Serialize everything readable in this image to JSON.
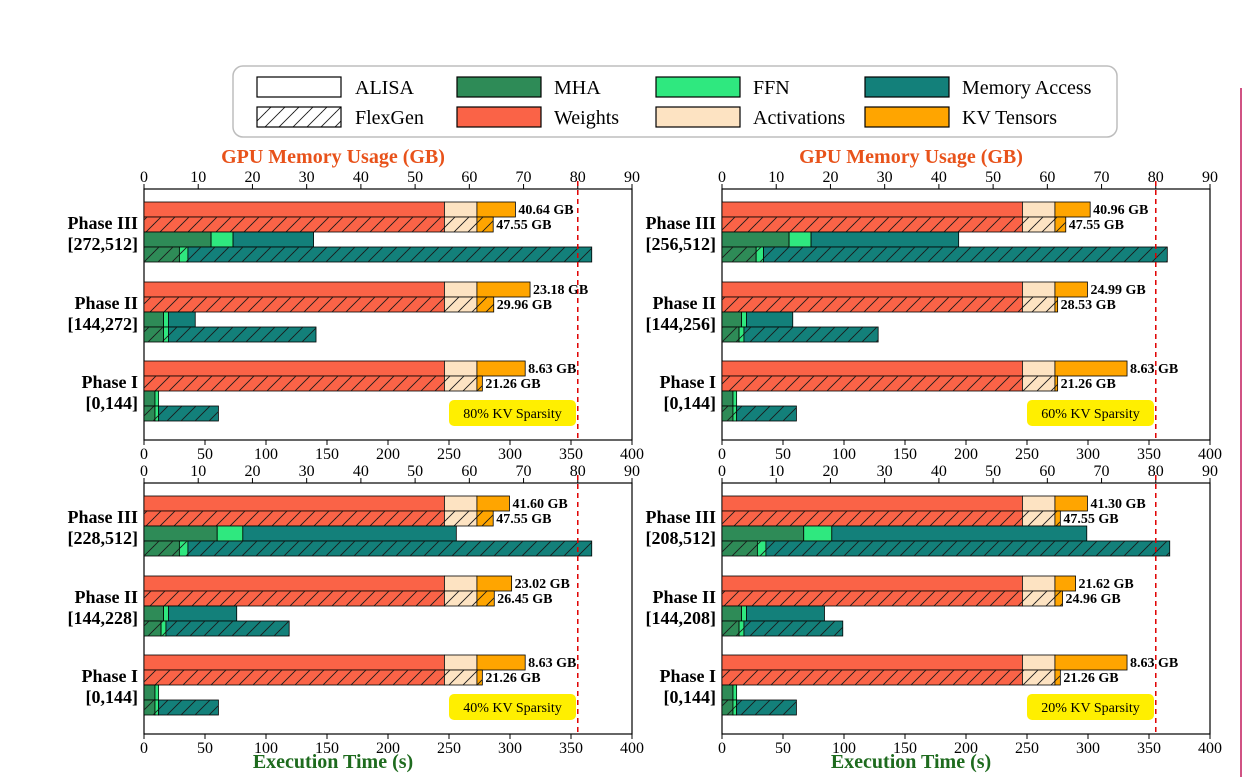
{
  "legend": {
    "items": [
      {
        "label": "ALISA",
        "kind": "outline"
      },
      {
        "label": "MHA",
        "color": "#2e8b57"
      },
      {
        "label": "FFN",
        "color": "#2fe87f"
      },
      {
        "label": "Memory Access",
        "color": "#13807a"
      },
      {
        "label": "FlexGen",
        "kind": "hatch"
      },
      {
        "label": "Weights",
        "color": "#fa6347"
      },
      {
        "label": "Activations",
        "color": "#fde3c2"
      },
      {
        "label": "KV Tensors",
        "color": "#ffa500"
      }
    ]
  },
  "colors": {
    "mha": "#2e8b57",
    "ffn": "#2fe87f",
    "memory_access": "#13807a",
    "weights": "#fa6347",
    "activations": "#fde3c2",
    "kv": "#ffa500",
    "memory_axis_title": "#e8521a",
    "time_axis_title": "#1e6b1e",
    "sparsity_box": "#ffef00",
    "reference_line": "#e00000",
    "right_edge_line": "#c0195a"
  },
  "chart_data": [
    {
      "type": "bar",
      "memory_axis": {
        "title": "GPU Memory Usage (GB)",
        "range": [
          0,
          90
        ],
        "ticks": [
          0,
          10,
          20,
          30,
          40,
          50,
          60,
          70,
          80,
          90
        ]
      },
      "time_axis": {
        "title": "",
        "range": [
          0,
          400
        ],
        "ticks": [
          0,
          50,
          100,
          150,
          200,
          250,
          300,
          350,
          400
        ]
      },
      "reference_line_gb": 80,
      "annotation": "80% KV Sparsity",
      "phases": [
        {
          "label": "Phase III",
          "range": "[272,512]",
          "memory_alisa": {
            "weights": 55.4,
            "activations": 6.0,
            "kv": 7.1,
            "label": "40.64 GB"
          },
          "memory_flexgen": {
            "weights": 55.4,
            "activations": 6.0,
            "kv": 3.0,
            "label": "47.55 GB"
          },
          "time_alisa": {
            "mha": 55,
            "ffn": 18,
            "memory_access": 66
          },
          "time_flexgen": {
            "mha": 29,
            "ffn": 7,
            "memory_access": 331
          }
        },
        {
          "label": "Phase II",
          "range": "[144,272]",
          "memory_alisa": {
            "weights": 55.4,
            "activations": 6.0,
            "kv": 9.8,
            "label": "23.18 GB"
          },
          "memory_flexgen": {
            "weights": 55.4,
            "activations": 6.0,
            "kv": 3.1,
            "label": "29.96 GB"
          },
          "time_alisa": {
            "mha": 16,
            "ffn": 4,
            "memory_access": 22
          },
          "time_flexgen": {
            "mha": 16,
            "ffn": 4,
            "memory_access": 121
          }
        },
        {
          "label": "Phase I",
          "range": "[0,144]",
          "memory_alisa": {
            "weights": 55.4,
            "activations": 6.0,
            "kv": 8.9,
            "label": "8.63 GB"
          },
          "memory_flexgen": {
            "weights": 55.4,
            "activations": 6.0,
            "kv": 1.0,
            "label": "21.26 GB"
          },
          "time_alisa": {
            "mha": 9,
            "ffn": 3,
            "memory_access": 0
          },
          "time_flexgen": {
            "mha": 9,
            "ffn": 3,
            "memory_access": 49
          }
        }
      ]
    },
    {
      "type": "bar",
      "memory_axis": {
        "title": "GPU Memory Usage (GB)",
        "range": [
          0,
          90
        ],
        "ticks": [
          0,
          10,
          20,
          30,
          40,
          50,
          60,
          70,
          80,
          90
        ]
      },
      "time_axis": {
        "title": "",
        "range": [
          0,
          400
        ],
        "ticks": [
          0,
          50,
          100,
          150,
          200,
          250,
          300,
          350,
          400
        ]
      },
      "reference_line_gb": 80,
      "annotation": "60% KV Sparsity",
      "phases": [
        {
          "label": "Phase III",
          "range": "[256,512]",
          "memory_alisa": {
            "weights": 55.4,
            "activations": 6.0,
            "kv": 6.5,
            "label": "40.96 GB"
          },
          "memory_flexgen": {
            "weights": 55.4,
            "activations": 6.0,
            "kv": 2.0,
            "label": "47.55 GB"
          },
          "time_alisa": {
            "mha": 55,
            "ffn": 18,
            "memory_access": 121
          },
          "time_flexgen": {
            "mha": 28,
            "ffn": 6,
            "memory_access": 331
          }
        },
        {
          "label": "Phase II",
          "range": "[144,256]",
          "memory_alisa": {
            "weights": 55.4,
            "activations": 6.0,
            "kv": 6.0,
            "label": "24.99 GB"
          },
          "memory_flexgen": {
            "weights": 55.4,
            "activations": 6.0,
            "kv": 0.5,
            "label": "28.53 GB"
          },
          "time_alisa": {
            "mha": 16,
            "ffn": 4,
            "memory_access": 38
          },
          "time_flexgen": {
            "mha": 14,
            "ffn": 4,
            "memory_access": 110
          }
        },
        {
          "label": "Phase I",
          "range": "[0,144]",
          "memory_alisa": {
            "weights": 55.4,
            "activations": 6.0,
            "kv": 13.3,
            "label": "8.63 GB"
          },
          "memory_flexgen": {
            "weights": 55.4,
            "activations": 6.0,
            "kv": 0.5,
            "label": "21.26 GB"
          },
          "time_alisa": {
            "mha": 9,
            "ffn": 3,
            "memory_access": 0
          },
          "time_flexgen": {
            "mha": 9,
            "ffn": 3,
            "memory_access": 49
          }
        }
      ]
    },
    {
      "type": "bar",
      "memory_axis": {
        "title": "",
        "range": [
          0,
          90
        ],
        "ticks": [
          0,
          10,
          20,
          30,
          40,
          50,
          60,
          70,
          80,
          90
        ]
      },
      "time_axis": {
        "title": "Execution Time (s)",
        "range": [
          0,
          400
        ],
        "ticks": [
          0,
          50,
          100,
          150,
          200,
          250,
          300,
          350,
          400
        ]
      },
      "reference_line_gb": 80,
      "annotation": "40% KV Sparsity",
      "phases": [
        {
          "label": "Phase III",
          "range": "[228,512]",
          "memory_alisa": {
            "weights": 55.4,
            "activations": 6.0,
            "kv": 6.0,
            "label": "41.60 GB"
          },
          "memory_flexgen": {
            "weights": 55.4,
            "activations": 6.0,
            "kv": 3.0,
            "label": "47.55 GB"
          },
          "time_alisa": {
            "mha": 60,
            "ffn": 21,
            "memory_access": 175
          },
          "time_flexgen": {
            "mha": 29,
            "ffn": 7,
            "memory_access": 331
          }
        },
        {
          "label": "Phase II",
          "range": "[144,228]",
          "memory_alisa": {
            "weights": 55.4,
            "activations": 6.0,
            "kv": 6.4,
            "label": "23.02 GB"
          },
          "memory_flexgen": {
            "weights": 55.4,
            "activations": 6.0,
            "kv": 3.2,
            "label": "26.45 GB"
          },
          "time_alisa": {
            "mha": 16,
            "ffn": 4,
            "memory_access": 56
          },
          "time_flexgen": {
            "mha": 14,
            "ffn": 4,
            "memory_access": 101
          }
        },
        {
          "label": "Phase I",
          "range": "[0,144]",
          "memory_alisa": {
            "weights": 55.4,
            "activations": 6.0,
            "kv": 8.9,
            "label": "8.63 GB"
          },
          "memory_flexgen": {
            "weights": 55.4,
            "activations": 6.0,
            "kv": 1.0,
            "label": "21.26 GB"
          },
          "time_alisa": {
            "mha": 9,
            "ffn": 3,
            "memory_access": 0
          },
          "time_flexgen": {
            "mha": 9,
            "ffn": 3,
            "memory_access": 49
          }
        }
      ]
    },
    {
      "type": "bar",
      "memory_axis": {
        "title": "",
        "range": [
          0,
          90
        ],
        "ticks": [
          0,
          10,
          20,
          30,
          40,
          50,
          60,
          70,
          80,
          90
        ]
      },
      "time_axis": {
        "title": "Execution Time (s)",
        "range": [
          0,
          400
        ],
        "ticks": [
          0,
          50,
          100,
          150,
          200,
          250,
          300,
          350,
          400
        ]
      },
      "reference_line_gb": 80,
      "annotation": "20% KV Sparsity",
      "phases": [
        {
          "label": "Phase III",
          "range": "[208,512]",
          "memory_alisa": {
            "weights": 55.4,
            "activations": 6.0,
            "kv": 6.0,
            "label": "41.30 GB"
          },
          "memory_flexgen": {
            "weights": 55.4,
            "activations": 6.0,
            "kv": 1.0,
            "label": "47.55 GB"
          },
          "time_alisa": {
            "mha": 67,
            "ffn": 23,
            "memory_access": 209
          },
          "time_flexgen": {
            "mha": 29,
            "ffn": 7,
            "memory_access": 331
          }
        },
        {
          "label": "Phase II",
          "range": "[144,208]",
          "memory_alisa": {
            "weights": 55.4,
            "activations": 6.0,
            "kv": 3.8,
            "label": "21.62 GB"
          },
          "memory_flexgen": {
            "weights": 55.4,
            "activations": 6.0,
            "kv": 1.4,
            "label": "24.96 GB"
          },
          "time_alisa": {
            "mha": 16,
            "ffn": 4,
            "memory_access": 64
          },
          "time_flexgen": {
            "mha": 14,
            "ffn": 4,
            "memory_access": 81
          }
        },
        {
          "label": "Phase I",
          "range": "[0,144]",
          "memory_alisa": {
            "weights": 55.4,
            "activations": 6.0,
            "kv": 13.3,
            "label": "8.63 GB"
          },
          "memory_flexgen": {
            "weights": 55.4,
            "activations": 6.0,
            "kv": 1.0,
            "label": "21.26 GB"
          },
          "time_alisa": {
            "mha": 9,
            "ffn": 3,
            "memory_access": 0
          },
          "time_flexgen": {
            "mha": 9,
            "ffn": 3,
            "memory_access": 49
          }
        }
      ]
    }
  ]
}
